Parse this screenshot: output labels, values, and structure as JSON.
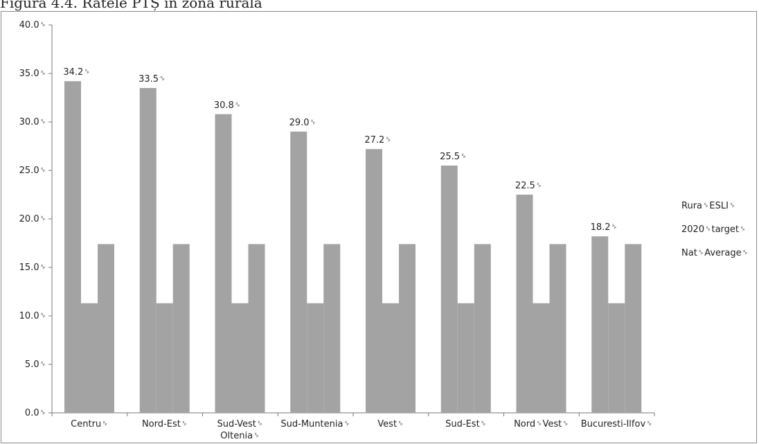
{
  "caption": "Figura 4.4. Ratele PTȘ în zona rurală",
  "chart_data": {
    "type": "bar",
    "categories": [
      "Centru␠",
      "Nord-Est␠",
      "Sud-Vest␠ Oltenia␠",
      "Sud-Muntenia␠",
      "Vest␠",
      "Sud-Est␠",
      "Nord␠Vest␠",
      "Bucuresti-Ilfov␠"
    ],
    "series": [
      {
        "name": "Rura␠ESLI␠",
        "values": [
          34.2,
          33.5,
          30.8,
          29.0,
          27.2,
          25.5,
          22.5,
          18.2
        ],
        "labels": [
          "34.2␠",
          "33.5␠",
          "30.8␠",
          "29.0␠",
          "27.2␠",
          "25.5␠",
          "22.5␠",
          "18.2␠"
        ]
      },
      {
        "name": "2020␠target␠",
        "values": [
          11.3,
          11.3,
          11.3,
          11.3,
          11.3,
          11.3,
          11.3,
          11.3
        ]
      },
      {
        "name": "Nat␠Average␠",
        "values": [
          17.4,
          17.4,
          17.4,
          17.4,
          17.4,
          17.4,
          17.4,
          17.4
        ]
      }
    ],
    "ylim": [
      0,
      40
    ],
    "yticks": [
      0,
      5,
      10,
      15,
      20,
      25,
      30,
      35,
      40
    ],
    "ytick_labels": [
      "0.0␠",
      "5.0␠",
      "10.0␠",
      "15.0␠",
      "20.0␠",
      "25.0␠",
      "30.0␠",
      "35.0␠",
      "40.0␠"
    ],
    "bar_color": "#a3a3a3",
    "grid": false,
    "legend_position": "right"
  }
}
